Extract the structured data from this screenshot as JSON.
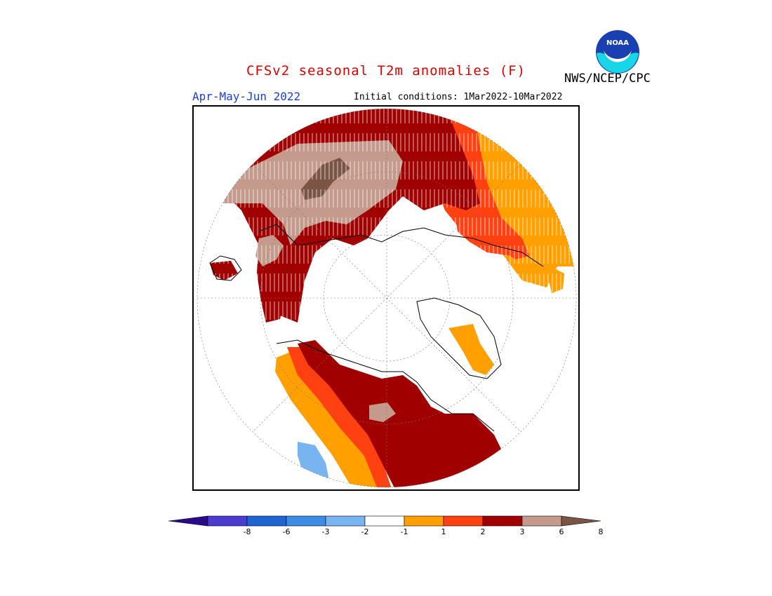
{
  "header": {
    "title": "CFSv2 seasonal T2m anomalies (F)",
    "season": "Apr-May-Jun 2022",
    "initial_conditions": "Initial conditions: 1Mar2022-10Mar2022",
    "agency": "NWS/NCEP/CPC",
    "logo_text": "NOAA"
  },
  "colors": {
    "title": "#e00000",
    "season": "#1a3fe0",
    "frame": "#000000"
  },
  "colorbar": {
    "tick_labels": [
      "-8",
      "-6",
      "-3",
      "-2",
      "-1",
      "1",
      "2",
      "3",
      "6",
      "8"
    ],
    "segments": [
      {
        "label": "-8 or below",
        "color": "#2a0a8a"
      },
      {
        "label": "-8 to -6",
        "color": "#4b3bd0"
      },
      {
        "label": "-6 to -3",
        "color": "#1e64d2"
      },
      {
        "label": "-3 to -2",
        "color": "#3c8ce6"
      },
      {
        "label": "-2 to -1",
        "color": "#78b4f0"
      },
      {
        "label": "-1 to 1",
        "color": "#ffffff"
      },
      {
        "label": "1 to 2",
        "color": "#ffa000"
      },
      {
        "label": "2 to 3",
        "color": "#ff4010"
      },
      {
        "label": "3 to 6",
        "color": "#a00000"
      },
      {
        "label": "6 to 8",
        "color": "#c49a8c"
      },
      {
        "label": "8 or above",
        "color": "#7a5546"
      }
    ]
  }
}
